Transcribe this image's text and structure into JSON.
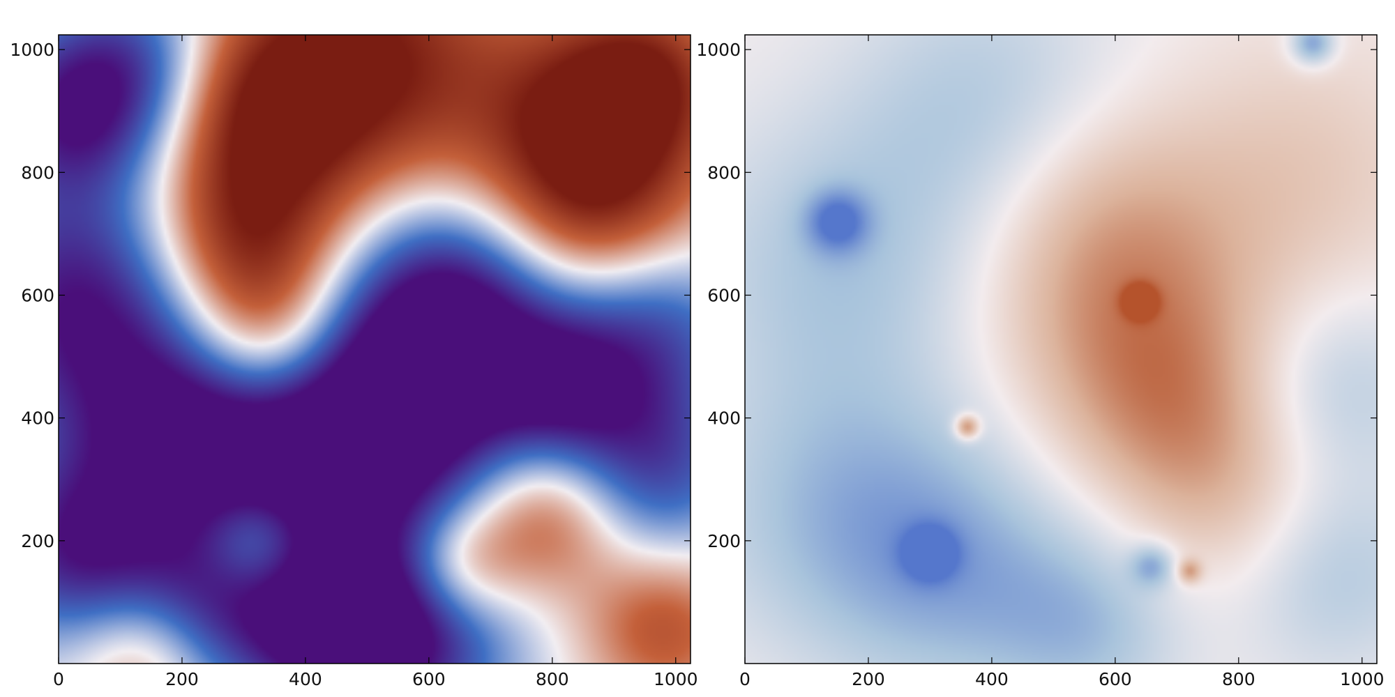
{
  "chart_data": [
    {
      "type": "heatmap",
      "title": "",
      "xlabel": "",
      "ylabel": "",
      "xlim": [
        0,
        1024
      ],
      "ylim": [
        0,
        1024
      ],
      "x_ticks": [
        0,
        200,
        400,
        600,
        800,
        1000
      ],
      "y_ticks": [
        200,
        400,
        600,
        800,
        1000
      ],
      "colormap": "diverging blue-white-red",
      "colors": {
        "low": "#4a0f7a",
        "mid_low": "#3f6fc4",
        "mid": "#f2eef2",
        "mid_high": "#c4603a",
        "high": "#7a1d12"
      },
      "blobs": [
        {
          "x": 500,
          "y": 980,
          "sign": 1,
          "r": 160,
          "w": 1.0
        },
        {
          "x": 330,
          "y": 900,
          "sign": 1,
          "r": 110,
          "w": 0.7
        },
        {
          "x": 300,
          "y": 690,
          "sign": 1,
          "r": 110,
          "w": 0.9
        },
        {
          "x": 340,
          "y": 530,
          "sign": 1,
          "r": 90,
          "w": 0.6
        },
        {
          "x": 860,
          "y": 740,
          "sign": 1,
          "r": 130,
          "w": 0.9
        },
        {
          "x": 860,
          "y": 900,
          "sign": 1,
          "r": 120,
          "w": 0.7
        },
        {
          "x": 960,
          "y": 960,
          "sign": 1,
          "r": 90,
          "w": 0.6
        },
        {
          "x": 790,
          "y": 240,
          "sign": 1,
          "r": 90,
          "w": 0.7
        },
        {
          "x": 650,
          "y": 160,
          "sign": 1,
          "r": 70,
          "w": 0.6
        },
        {
          "x": 980,
          "y": 60,
          "sign": 1,
          "r": 90,
          "w": 0.6
        },
        {
          "x": 140,
          "y": 20,
          "sign": 1,
          "r": 80,
          "w": 0.5
        },
        {
          "x": 320,
          "y": 200,
          "sign": 1,
          "r": 60,
          "w": 0.5
        },
        {
          "x": 40,
          "y": 580,
          "sign": -1,
          "r": 150,
          "w": 1.0
        },
        {
          "x": 30,
          "y": 190,
          "sign": -1,
          "r": 110,
          "w": 0.9
        },
        {
          "x": 20,
          "y": 900,
          "sign": -1,
          "r": 100,
          "w": 0.8
        },
        {
          "x": 130,
          "y": 980,
          "sign": -1,
          "r": 100,
          "w": 0.6
        },
        {
          "x": 560,
          "y": 420,
          "sign": -1,
          "r": 150,
          "w": 1.1
        },
        {
          "x": 360,
          "y": 320,
          "sign": -1,
          "r": 140,
          "w": 0.9
        },
        {
          "x": 660,
          "y": 600,
          "sign": -1,
          "r": 130,
          "w": 0.9
        },
        {
          "x": 560,
          "y": 50,
          "sign": -1,
          "r": 120,
          "w": 1.0
        },
        {
          "x": 420,
          "y": 50,
          "sign": -1,
          "r": 100,
          "w": 0.7
        },
        {
          "x": 960,
          "y": 560,
          "sign": -1,
          "r": 110,
          "w": 0.7
        },
        {
          "x": 960,
          "y": 320,
          "sign": -1,
          "r": 110,
          "w": 0.7
        },
        {
          "x": 180,
          "y": 380,
          "sign": -1,
          "r": 110,
          "w": 0.6
        },
        {
          "x": 230,
          "y": 90,
          "sign": -1,
          "r": 100,
          "w": 0.6
        },
        {
          "x": 820,
          "y": 450,
          "sign": -1,
          "r": 90,
          "w": 0.6
        }
      ]
    },
    {
      "type": "heatmap",
      "title": "",
      "xlabel": "",
      "ylabel": "",
      "xlim": [
        0,
        1024
      ],
      "ylim": [
        0,
        1024
      ],
      "x_ticks": [
        0,
        200,
        400,
        600,
        800,
        1000
      ],
      "y_ticks": [
        200,
        400,
        600,
        800,
        1000
      ],
      "colormap": "diverging blue-white-red",
      "colors": {
        "low": "#5577cc",
        "mid_low": "#a9c4dc",
        "mid": "#f3ecee",
        "mid_high": "#dcb39c",
        "high": "#b5532c"
      },
      "blobs": [
        {
          "x": 620,
          "y": 560,
          "sign": 1,
          "r": 160,
          "w": 0.55
        },
        {
          "x": 700,
          "y": 400,
          "sign": 1,
          "r": 130,
          "w": 0.45
        },
        {
          "x": 560,
          "y": 750,
          "sign": 1,
          "r": 140,
          "w": 0.35
        },
        {
          "x": 900,
          "y": 800,
          "sign": 1,
          "r": 160,
          "w": 0.3
        },
        {
          "x": 800,
          "y": 250,
          "sign": 1,
          "r": 120,
          "w": 0.3
        },
        {
          "x": 360,
          "y": 385,
          "sign": 1,
          "r": 14,
          "w": 0.9
        },
        {
          "x": 640,
          "y": 590,
          "sign": 1,
          "r": 18,
          "w": 0.8
        },
        {
          "x": 720,
          "y": 150,
          "sign": 1,
          "r": 14,
          "w": 0.6
        },
        {
          "x": 150,
          "y": 650,
          "sign": -1,
          "r": 170,
          "w": 0.45
        },
        {
          "x": 160,
          "y": 250,
          "sign": -1,
          "r": 170,
          "w": 0.5
        },
        {
          "x": 350,
          "y": 150,
          "sign": -1,
          "r": 150,
          "w": 0.5
        },
        {
          "x": 400,
          "y": 900,
          "sign": -1,
          "r": 160,
          "w": 0.45
        },
        {
          "x": 950,
          "y": 150,
          "sign": -1,
          "r": 120,
          "w": 0.45
        },
        {
          "x": 960,
          "y": 450,
          "sign": -1,
          "r": 110,
          "w": 0.4
        },
        {
          "x": 560,
          "y": 60,
          "sign": -1,
          "r": 110,
          "w": 0.45
        },
        {
          "x": 150,
          "y": 720,
          "sign": -1,
          "r": 35,
          "w": 0.7
        },
        {
          "x": 300,
          "y": 180,
          "sign": -1,
          "r": 30,
          "w": 0.7
        },
        {
          "x": 920,
          "y": 1010,
          "sign": -1,
          "r": 25,
          "w": 0.8
        },
        {
          "x": 660,
          "y": 160,
          "sign": -1,
          "r": 25,
          "w": 0.6
        }
      ]
    }
  ]
}
